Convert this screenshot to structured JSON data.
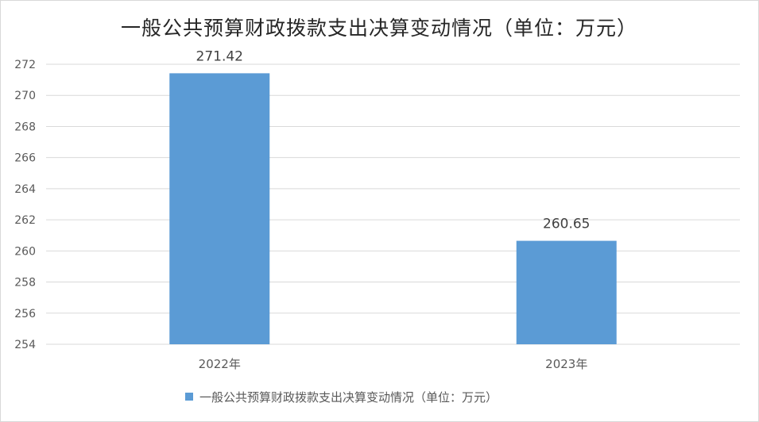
{
  "chart_data": {
    "type": "bar",
    "title": "一般公共预算财政拨款支出决算变动情况（单位：万元）",
    "categories": [
      "2022年",
      "2023年"
    ],
    "series": [
      {
        "name": "一般公共预算财政拨款支出决算变动情况（单位：万元）",
        "values": [
          271.42,
          260.65
        ],
        "data_labels": [
          "271.42",
          "260.65"
        ],
        "color": "#5b9bd5"
      }
    ],
    "ylim": [
      254,
      272
    ],
    "yticks": [
      "254",
      "256",
      "258",
      "260",
      "262",
      "264",
      "266",
      "268",
      "270",
      "272"
    ],
    "grid": true,
    "legend_position": "bottom"
  }
}
